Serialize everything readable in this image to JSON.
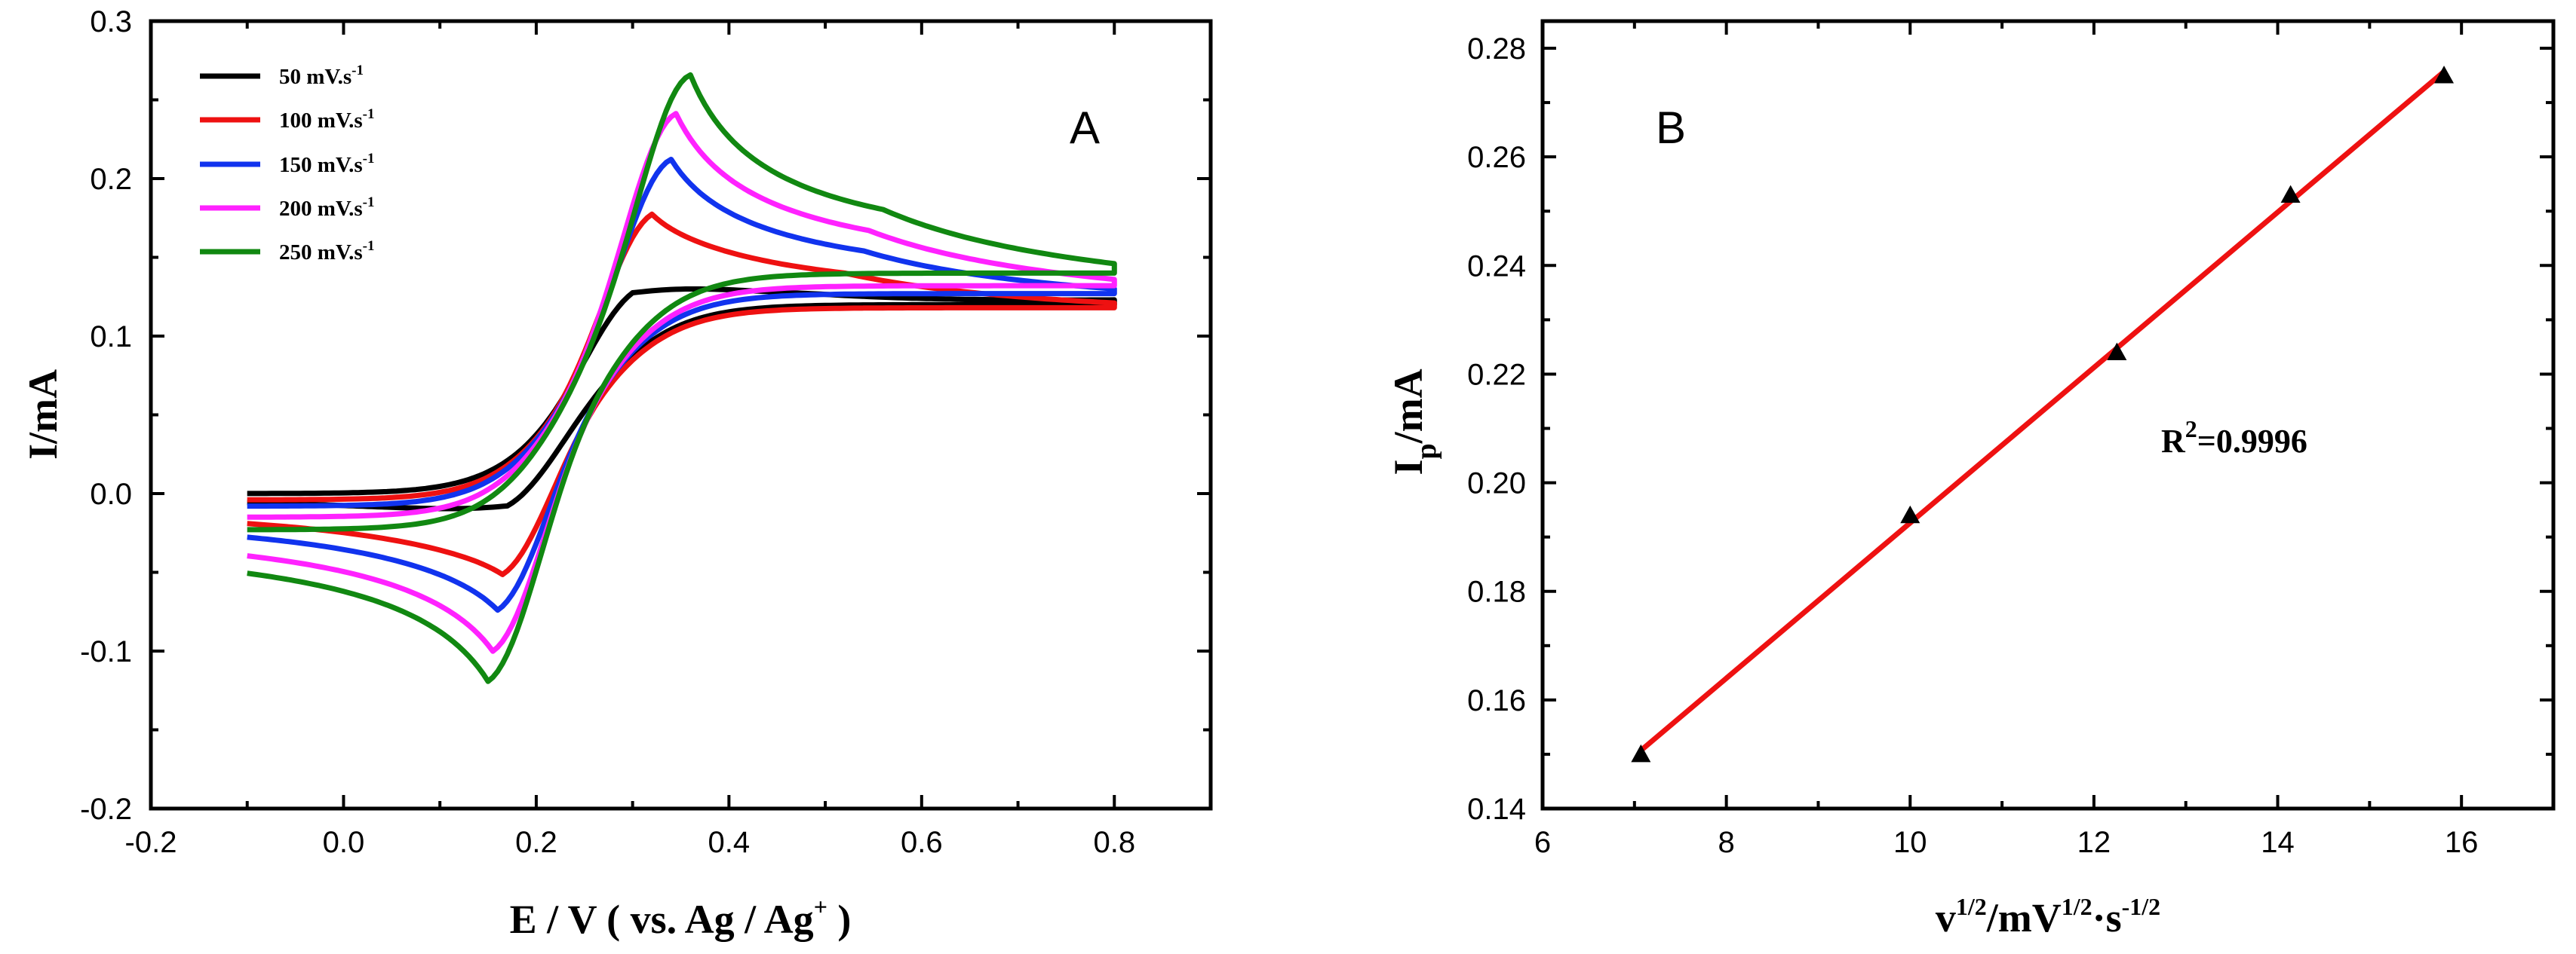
{
  "chart_data": [
    {
      "id": "A",
      "type": "line",
      "panel_label": "A",
      "xlabel_main": "E / V ( vs. Ag / Ag",
      "xlabel_sup": "+",
      "xlabel_end": ")",
      "ylabel": "I/mA",
      "xlim": [
        -0.2,
        0.9
      ],
      "ylim": [
        -0.2,
        0.3
      ],
      "xticks": [
        -0.2,
        0.0,
        0.2,
        0.4,
        0.6,
        0.8
      ],
      "xtick_labels": [
        "-0.2",
        "0.0",
        "0.2",
        "0.4",
        "0.6",
        "0.8"
      ],
      "yticks": [
        -0.2,
        -0.1,
        0.0,
        0.1,
        0.2,
        0.3
      ],
      "ytick_labels": [
        "-0.2",
        "-0.1",
        "0.0",
        "0.1",
        "0.2",
        "0.3"
      ],
      "legend_position": "top-left",
      "series": [
        {
          "name": "50 mV.s",
          "sup": "-1",
          "color": "#000000",
          "anodic_peak": [
            0.3,
            0.15
          ],
          "cathodic_peak": [
            0.17,
            -0.025
          ],
          "start_current": 0.0,
          "end_upper": 0.123,
          "end_lower": 0.12,
          "plateau": 0.118
        },
        {
          "name": "100 mV.s",
          "sup": "-1",
          "color": "#ee1111",
          "anodic_peak": [
            0.32,
            0.194
          ],
          "cathodic_peak": [
            0.165,
            -0.069
          ],
          "start_current": -0.004,
          "end_upper": 0.121,
          "end_lower": 0.118,
          "plateau": 0.12
        },
        {
          "name": "150 mV.s",
          "sup": "-1",
          "color": "#1133ee",
          "anodic_peak": [
            0.34,
            0.224
          ],
          "cathodic_peak": [
            0.16,
            -0.092
          ],
          "start_current": -0.008,
          "end_upper": 0.13,
          "end_lower": 0.127,
          "plateau": 0.128
        },
        {
          "name": "200 mV.s",
          "sup": "-1",
          "color": "#ff22ff",
          "anodic_peak": [
            0.345,
            0.253
          ],
          "cathodic_peak": [
            0.155,
            -0.118
          ],
          "start_current": -0.015,
          "end_upper": 0.136,
          "end_lower": 0.132,
          "plateau": 0.135
        },
        {
          "name": "250 mV.s",
          "sup": "-1",
          "color": "#118811",
          "anodic_peak": [
            0.36,
            0.275
          ],
          "cathodic_peak": [
            0.15,
            -0.137
          ],
          "start_current": -0.023,
          "end_upper": 0.146,
          "end_lower": 0.14,
          "plateau": 0.145
        }
      ]
    },
    {
      "id": "B",
      "type": "scatter",
      "panel_label": "B",
      "xlabel_parts": [
        "v",
        "1/2",
        "/mV",
        "1/2",
        "·s",
        "-1/2"
      ],
      "ylabel_parts": [
        "I",
        "p",
        "/mA"
      ],
      "xlim": [
        6,
        17
      ],
      "ylim": [
        0.14,
        0.285
      ],
      "xticks": [
        6,
        8,
        10,
        12,
        14,
        16
      ],
      "xtick_labels": [
        "6",
        "8",
        "10",
        "12",
        "14",
        "16"
      ],
      "yticks": [
        0.14,
        0.16,
        0.18,
        0.2,
        0.22,
        0.24,
        0.26,
        0.28
      ],
      "ytick_labels": [
        "0.14",
        "0.16",
        "0.18",
        "0.20",
        "0.22",
        "0.24",
        "0.26",
        "0.28"
      ],
      "points": {
        "x": [
          7.07,
          10.0,
          12.25,
          14.14,
          15.81
        ],
        "y": [
          0.15,
          0.194,
          0.224,
          0.253,
          0.275
        ]
      },
      "fit_line": {
        "x": [
          7.07,
          15.81
        ],
        "y": [
          0.1507,
          0.2757
        ],
        "color": "#ee1111"
      },
      "annotation": {
        "label": "R",
        "sup": "2",
        "text": "=0.9996"
      }
    }
  ]
}
